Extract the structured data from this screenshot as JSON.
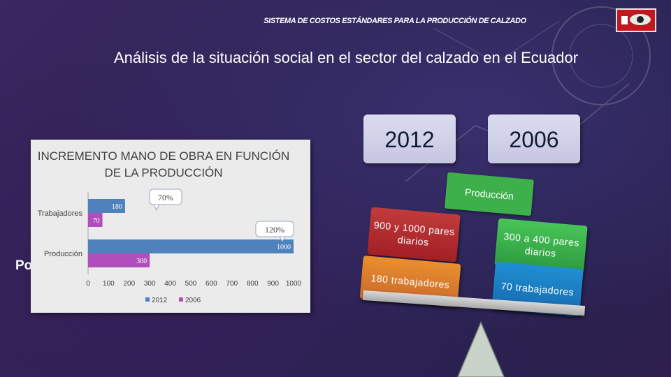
{
  "header": {
    "title": "SISTEMA DE COSTOS ESTÁNDARES PARA LA PRODUCCIÓN DE CALZADO"
  },
  "main_title": "Análisis de la situación social en el sector del calzado en el Ecuador",
  "years": {
    "left": "2012",
    "right": "2006"
  },
  "side_text": "Po",
  "balance": {
    "banner": "Producción",
    "pill_2012_production": "900 y 1000 pares diarios",
    "pill_2012_workers": "180 trabajadores",
    "pill_2006_production": "300 a 400 pares diarios",
    "pill_2006_workers": "70 trabajadores"
  },
  "colors": {
    "series_2012": "#4f81bd",
    "series_2006": "#b04fbc",
    "banner_green": "#3db04b",
    "pill_red": "#b02a2e",
    "pill_orange": "#dc7c2e",
    "pill_green": "#3bb14d",
    "pill_blue": "#1b7fc4"
  },
  "chart_data": {
    "type": "bar",
    "orientation": "horizontal",
    "title": "INCREMENTO MANO DE OBRA EN FUNCIÓN DE LA PRODUCCIÓN",
    "categories": [
      "Trabajadores",
      "Producción"
    ],
    "series": [
      {
        "name": "2012",
        "values": [
          180,
          1000
        ]
      },
      {
        "name": "2006",
        "values": [
          70,
          300
        ]
      }
    ],
    "xlim": [
      0,
      1000
    ],
    "xticks": [
      "0",
      "100",
      "200",
      "300",
      "400",
      "500",
      "600",
      "700",
      "800",
      "900",
      "1000"
    ],
    "annotations": [
      "70%",
      "120%"
    ],
    "legend": "bottom"
  }
}
